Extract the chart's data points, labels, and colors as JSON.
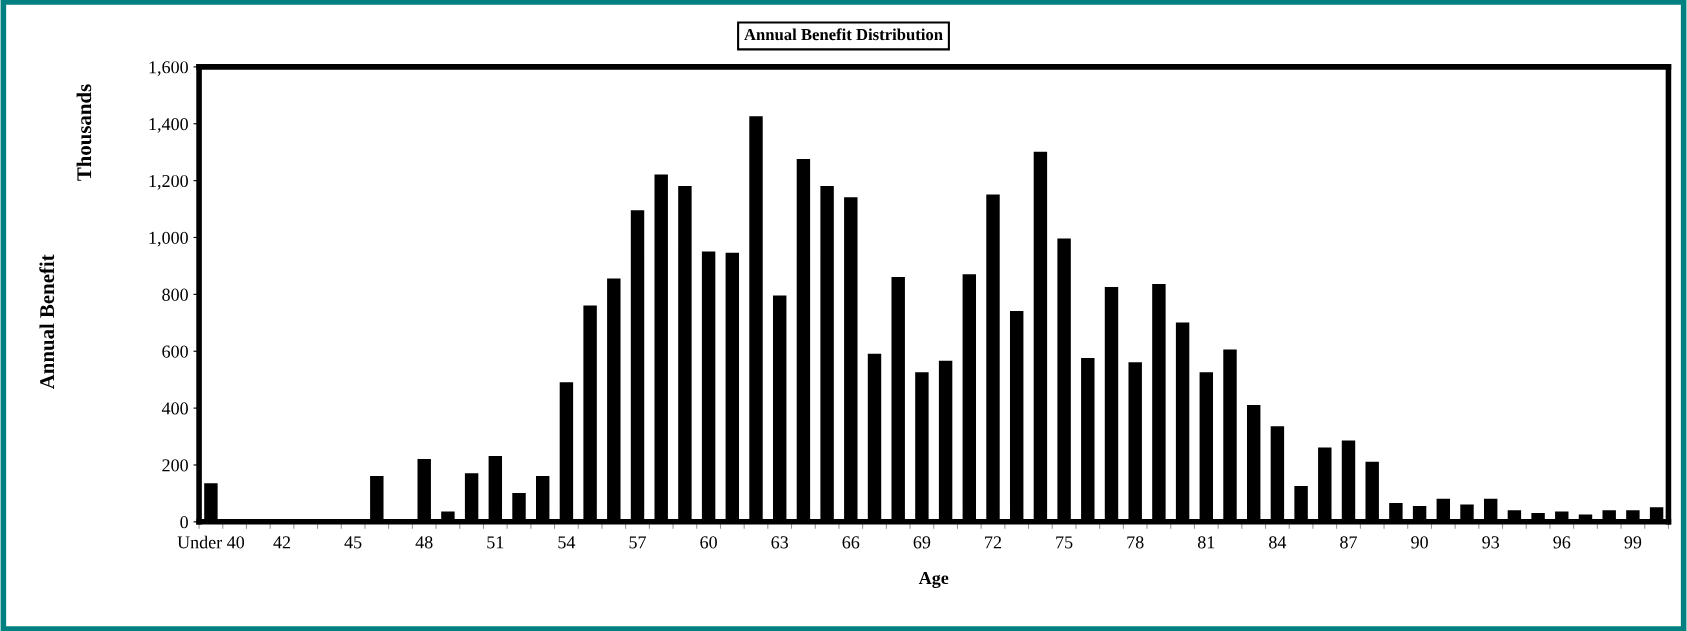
{
  "chart_data": {
    "type": "bar",
    "title": "Annual Benefit Distribution",
    "xlabel": "Age",
    "ylabel": "Annual Benefit",
    "annotations": [
      "Thousands"
    ],
    "categories": [
      "Under 40",
      null,
      null,
      "42",
      null,
      null,
      "45",
      null,
      null,
      "48",
      null,
      null,
      "51",
      null,
      null,
      "54",
      null,
      null,
      "57",
      null,
      null,
      "60",
      null,
      null,
      "63",
      null,
      null,
      "66",
      null,
      null,
      "69",
      null,
      null,
      "72",
      null,
      null,
      "75",
      null,
      null,
      "78",
      null,
      null,
      "81",
      null,
      null,
      "84",
      null,
      null,
      "87",
      null,
      null,
      "90",
      null,
      null,
      "93",
      null,
      null,
      "96",
      null,
      null,
      "99",
      null
    ],
    "values": [
      130,
      0,
      0,
      0,
      null,
      0,
      0,
      155,
      0,
      215,
      30,
      165,
      225,
      95,
      155,
      485,
      755,
      850,
      1090,
      1215,
      1175,
      945,
      940,
      1420,
      790,
      1270,
      1175,
      1135,
      585,
      855,
      520,
      560,
      865,
      1145,
      735,
      1295,
      990,
      570,
      820,
      555,
      830,
      695,
      520,
      600,
      405,
      330,
      120,
      255,
      280,
      205,
      60,
      50,
      75,
      55,
      75,
      35,
      25,
      30,
      20,
      35,
      35,
      45
    ],
    "color": "#000000",
    "ylim": [
      0,
      1600
    ],
    "yticks": [
      {
        "value": 0,
        "label": "0"
      },
      {
        "value": 200,
        "label": "200"
      },
      {
        "value": 400,
        "label": "400"
      },
      {
        "value": 600,
        "label": "600"
      },
      {
        "value": 800,
        "label": "800"
      },
      {
        "value": 1000,
        "label": "1,000"
      },
      {
        "value": 1200,
        "label": "1,200"
      },
      {
        "value": 1400,
        "label": "1,400"
      },
      {
        "value": 1600,
        "label": "1,600"
      }
    ],
    "grid": false,
    "legend": false
  }
}
